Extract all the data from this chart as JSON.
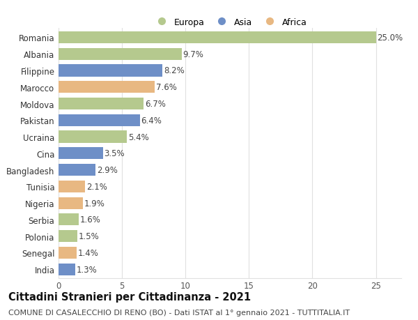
{
  "countries": [
    "Romania",
    "Albania",
    "Filippine",
    "Marocco",
    "Moldova",
    "Pakistan",
    "Ucraina",
    "Cina",
    "Bangladesh",
    "Tunisia",
    "Nigeria",
    "Serbia",
    "Polonia",
    "Senegal",
    "India"
  ],
  "values": [
    25.0,
    9.7,
    8.2,
    7.6,
    6.7,
    6.4,
    5.4,
    3.5,
    2.9,
    2.1,
    1.9,
    1.6,
    1.5,
    1.4,
    1.3
  ],
  "continents": [
    "Europa",
    "Europa",
    "Asia",
    "Africa",
    "Europa",
    "Asia",
    "Europa",
    "Asia",
    "Asia",
    "Africa",
    "Africa",
    "Europa",
    "Europa",
    "Africa",
    "Asia"
  ],
  "colors": {
    "Europa": "#b5c98e",
    "Asia": "#6e8fc7",
    "Africa": "#e8b882"
  },
  "title": "Cittadini Stranieri per Cittadinanza - 2021",
  "subtitle": "COMUNE DI CASALECCHIO DI RENO (BO) - Dati ISTAT al 1° gennaio 2021 - TUTTITALIA.IT",
  "xlim": [
    0,
    27
  ],
  "xticks": [
    0,
    5,
    10,
    15,
    20,
    25
  ],
  "background_color": "#ffffff",
  "grid_color": "#e0e0e0",
  "bar_height": 0.72,
  "title_fontsize": 10.5,
  "subtitle_fontsize": 8,
  "tick_fontsize": 8.5,
  "value_fontsize": 8.5,
  "legend_fontsize": 9
}
